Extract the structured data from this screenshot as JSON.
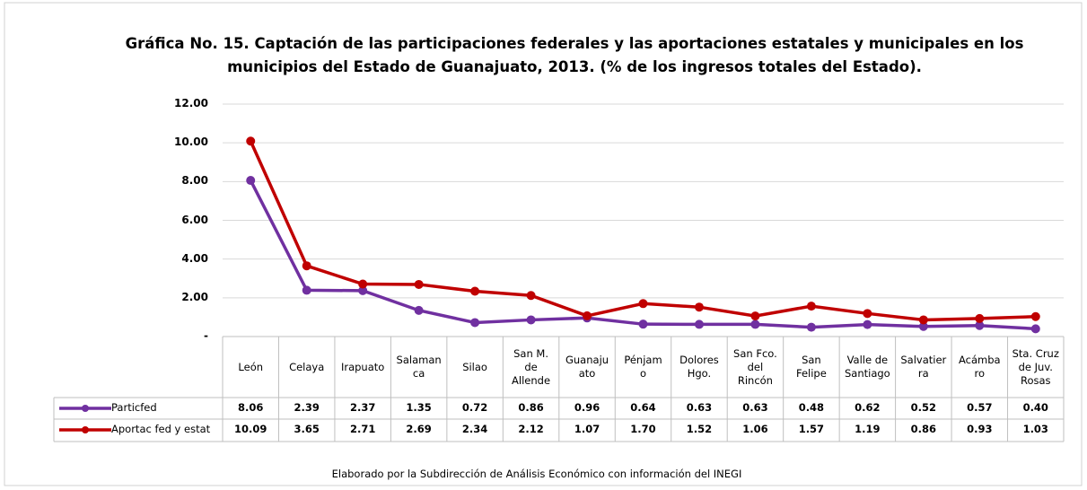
{
  "chart_data": {
    "type": "line",
    "title": "Gráfica No. 15. Captación de las participaciones federales y las aportaciones estatales y municipales en los\nmunicipios del Estado de Guanajuato, 2013. (% de los ingresos totales del Estado).",
    "categories": [
      "León",
      "Celaya",
      "Irapuato",
      "Salaman\nca",
      "Silao",
      "San M.\nde\nAllende",
      "Guanaju\nato",
      "Pénjam\no",
      "Dolores\nHgo.",
      "San Fco.\ndel\nRincón",
      "San\nFelipe",
      "Valle de\nSantiago",
      "Salvatier\nra",
      "Acámba\nro",
      "Sta. Cruz\nde Juv.\nRosas"
    ],
    "series": [
      {
        "name": "Particfed",
        "color": "#7030a0",
        "values": [
          8.06,
          2.39,
          2.37,
          1.35,
          0.72,
          0.86,
          0.96,
          0.64,
          0.63,
          0.63,
          0.48,
          0.62,
          0.52,
          0.57,
          0.4
        ],
        "value_labels": [
          "8.06",
          "2.39",
          "2.37",
          "1.35",
          "0.72",
          "0.86",
          "0.96",
          "0.64",
          "0.63",
          "0.63",
          "0.48",
          "0.62",
          "0.52",
          "0.57",
          "0.40"
        ]
      },
      {
        "name": "Aportac fed y estat",
        "color": "#c00000",
        "values": [
          10.09,
          3.65,
          2.71,
          2.69,
          2.34,
          2.12,
          1.07,
          1.7,
          1.52,
          1.06,
          1.57,
          1.19,
          0.86,
          0.93,
          1.03
        ],
        "value_labels": [
          "10.09",
          "3.65",
          "2.71",
          "2.69",
          "2.34",
          "2.12",
          "1.07",
          "1.70",
          "1.52",
          "1.06",
          "1.57",
          "1.19",
          "0.86",
          "0.93",
          "1.03"
        ]
      }
    ],
    "ylim": [
      0,
      12
    ],
    "yticks": [
      {
        "value": 0,
        "label": "-"
      },
      {
        "value": 2,
        "label": "2.00"
      },
      {
        "value": 4,
        "label": "4.00"
      },
      {
        "value": 6,
        "label": "6.00"
      },
      {
        "value": 8,
        "label": "8.00"
      },
      {
        "value": 10,
        "label": "10.00"
      },
      {
        "value": 12,
        "label": "12.00"
      }
    ],
    "grid": true,
    "note": "Elaborado por la Subdirección de Análisis Económico con información del INEGI"
  }
}
